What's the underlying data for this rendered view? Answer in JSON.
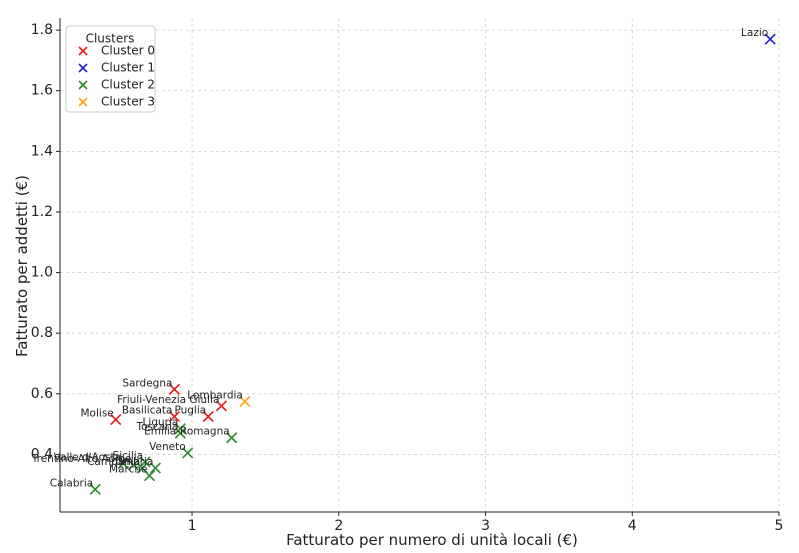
{
  "chart_data": {
    "type": "scatter",
    "title": "",
    "xlabel": "Fatturato per numero di unità locali (€)",
    "ylabel": "Fatturato per addetti (€)",
    "xlim": [
      0.1,
      5.0
    ],
    "ylim": [
      0.21,
      1.84
    ],
    "xticks": [
      1,
      2,
      3,
      4,
      5
    ],
    "yticks": [
      0.4,
      0.6,
      0.8,
      1.0,
      1.2,
      1.4,
      1.6,
      1.8
    ],
    "xtick_labels": [
      "1",
      "2",
      "3",
      "4",
      "5"
    ],
    "ytick_labels": [
      "0.4",
      "0.6",
      "0.8",
      "1.0",
      "1.2",
      "1.4",
      "1.6",
      "1.8"
    ],
    "grid": true,
    "legend": {
      "title": "Clusters",
      "position": "top-left",
      "entries": [
        "Cluster 0",
        "Cluster 1",
        "Cluster 2",
        "Cluster 3"
      ]
    },
    "series": [
      {
        "name": "Cluster 0",
        "color": "#e41a1c",
        "points": [
          {
            "x": 0.88,
            "y": 0.615,
            "label": "Sardegna"
          },
          {
            "x": 0.48,
            "y": 0.515,
            "label": "Molise"
          },
          {
            "x": 0.88,
            "y": 0.525,
            "label": "Basilicata"
          },
          {
            "x": 1.11,
            "y": 0.525,
            "label": "Puglia"
          },
          {
            "x": 1.2,
            "y": 0.56,
            "label": "Friuli-Venezia Giulia"
          }
        ]
      },
      {
        "name": "Cluster 1",
        "color": "#1f1fcf",
        "points": [
          {
            "x": 4.94,
            "y": 1.77,
            "label": "Lazio"
          }
        ]
      },
      {
        "name": "Cluster 2",
        "color": "#2a8a2a",
        "points": [
          {
            "x": 0.92,
            "y": 0.485,
            "label": "Liguria"
          },
          {
            "x": 0.92,
            "y": 0.47,
            "label": "Toscana"
          },
          {
            "x": 1.27,
            "y": 0.455,
            "label": "Emilia-Romagna"
          },
          {
            "x": 0.97,
            "y": 0.405,
            "label": "Veneto"
          },
          {
            "x": 0.68,
            "y": 0.375,
            "label": "Sicilia"
          },
          {
            "x": 0.53,
            "y": 0.37,
            "label": "Valle d'Aosta"
          },
          {
            "x": 0.6,
            "y": 0.365,
            "label": "Trentino-Alto Adige"
          },
          {
            "x": 0.66,
            "y": 0.355,
            "label": "Campania"
          },
          {
            "x": 0.71,
            "y": 0.33,
            "label": "Marche"
          },
          {
            "x": 0.75,
            "y": 0.355,
            "label": "Umbria"
          },
          {
            "x": 0.34,
            "y": 0.285,
            "label": "Calabria"
          }
        ]
      },
      {
        "name": "Cluster 3",
        "color": "#ffa31a",
        "points": [
          {
            "x": 1.36,
            "y": 0.575,
            "label": "Lombardia"
          }
        ]
      }
    ]
  }
}
